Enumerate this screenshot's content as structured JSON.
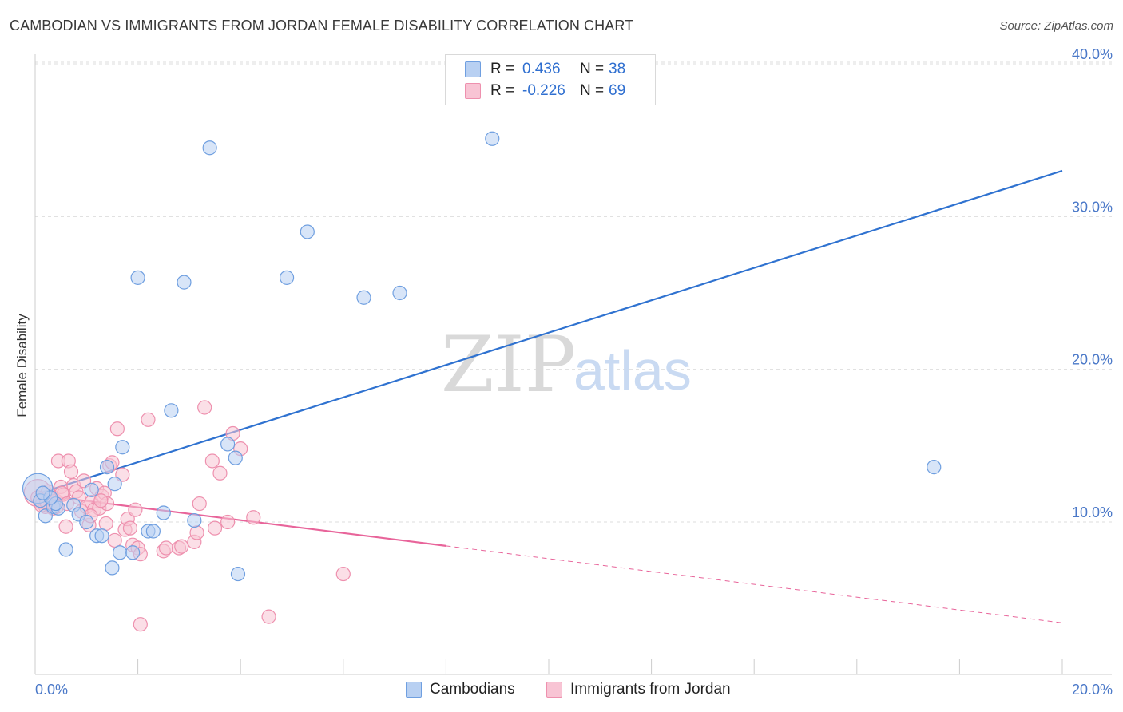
{
  "title": "CAMBODIAN VS IMMIGRANTS FROM JORDAN FEMALE DISABILITY CORRELATION CHART",
  "source": "Source: ZipAtlas.com",
  "watermark": {
    "zip": "ZIP",
    "atlas": "atlas"
  },
  "colors": {
    "blue_fill": "#b8d0f2",
    "blue_stroke": "#6f9fe0",
    "blue_line": "#2f72d0",
    "pink_fill": "#f8c4d4",
    "pink_stroke": "#ee90ae",
    "pink_line": "#e8649a",
    "grid": "#dddddd",
    "tick_text": "#4a78c8"
  },
  "legend": {
    "rows": [
      {
        "r_label": "R =",
        "r_value": "0.436",
        "n_label": "N =",
        "n_value": "38"
      },
      {
        "r_label": "R =",
        "r_value": "-0.226",
        "n_label": "N =",
        "n_value": "69"
      }
    ]
  },
  "bottom_legend": {
    "series1": "Cambodians",
    "series2": "Immigrants from Jordan"
  },
  "chart_data": {
    "type": "scatter",
    "title": "CAMBODIAN VS IMMIGRANTS FROM JORDAN FEMALE DISABILITY CORRELATION CHART",
    "xlabel": "",
    "ylabel": "Female Disability",
    "xlim": [
      0,
      20
    ],
    "ylim": [
      0,
      40
    ],
    "x_tick_labels": [
      "0.0%",
      "20.0%"
    ],
    "y_tick_labels": [
      "10.0%",
      "20.0%",
      "30.0%",
      "40.0%"
    ],
    "y_ticks": [
      10,
      20,
      30,
      40
    ],
    "grid": true,
    "series": [
      {
        "name": "Cambodians",
        "R": 0.436,
        "N": 38,
        "trend": {
          "x": [
            0,
            20
          ],
          "y": [
            11.8,
            33.0
          ],
          "dashed_from": null
        },
        "points": [
          {
            "x": 0.05,
            "y": 12.2,
            "s": 2.2
          },
          {
            "x": 0.1,
            "y": 11.4
          },
          {
            "x": 0.2,
            "y": 10.4
          },
          {
            "x": 0.35,
            "y": 11.0
          },
          {
            "x": 0.45,
            "y": 10.9
          },
          {
            "x": 0.6,
            "y": 8.2
          },
          {
            "x": 0.75,
            "y": 11.1
          },
          {
            "x": 0.85,
            "y": 10.5
          },
          {
            "x": 1.0,
            "y": 10.0
          },
          {
            "x": 1.1,
            "y": 12.1
          },
          {
            "x": 1.2,
            "y": 9.1
          },
          {
            "x": 1.3,
            "y": 9.1
          },
          {
            "x": 1.4,
            "y": 13.6
          },
          {
            "x": 1.5,
            "y": 7.0
          },
          {
            "x": 1.55,
            "y": 12.5
          },
          {
            "x": 1.65,
            "y": 8.0
          },
          {
            "x": 1.7,
            "y": 14.9
          },
          {
            "x": 1.9,
            "y": 8.0
          },
          {
            "x": 2.0,
            "y": 26.0
          },
          {
            "x": 2.2,
            "y": 9.4
          },
          {
            "x": 2.3,
            "y": 9.4
          },
          {
            "x": 2.5,
            "y": 10.6
          },
          {
            "x": 2.65,
            "y": 17.3
          },
          {
            "x": 2.9,
            "y": 25.7
          },
          {
            "x": 3.1,
            "y": 10.1
          },
          {
            "x": 3.4,
            "y": 34.5
          },
          {
            "x": 3.9,
            "y": 14.2
          },
          {
            "x": 3.75,
            "y": 15.1
          },
          {
            "x": 3.95,
            "y": 6.6
          },
          {
            "x": 4.9,
            "y": 26.0
          },
          {
            "x": 5.3,
            "y": 29.0
          },
          {
            "x": 6.4,
            "y": 24.7
          },
          {
            "x": 7.1,
            "y": 25.0
          },
          {
            "x": 8.9,
            "y": 35.1
          },
          {
            "x": 17.5,
            "y": 13.6
          },
          {
            "x": 0.4,
            "y": 11.2
          },
          {
            "x": 0.3,
            "y": 11.6
          },
          {
            "x": 0.15,
            "y": 11.9
          }
        ]
      },
      {
        "name": "Immigrants from Jordan",
        "R": -0.226,
        "N": 69,
        "trend": {
          "x": [
            0,
            20
          ],
          "y": [
            11.8,
            3.4
          ],
          "dashed_from": 8.0
        },
        "points": [
          {
            "x": 0.05,
            "y": 11.9,
            "s": 2.0
          },
          {
            "x": 0.1,
            "y": 11.3
          },
          {
            "x": 0.15,
            "y": 11.5
          },
          {
            "x": 0.2,
            "y": 11.0
          },
          {
            "x": 0.25,
            "y": 12.0
          },
          {
            "x": 0.3,
            "y": 11.2
          },
          {
            "x": 0.35,
            "y": 10.9
          },
          {
            "x": 0.4,
            "y": 11.4
          },
          {
            "x": 0.45,
            "y": 14.0
          },
          {
            "x": 0.5,
            "y": 12.3
          },
          {
            "x": 0.55,
            "y": 11.8
          },
          {
            "x": 0.6,
            "y": 9.7
          },
          {
            "x": 0.65,
            "y": 14.0
          },
          {
            "x": 0.7,
            "y": 13.3
          },
          {
            "x": 0.75,
            "y": 12.4
          },
          {
            "x": 0.8,
            "y": 12.0
          },
          {
            "x": 0.85,
            "y": 11.6
          },
          {
            "x": 0.9,
            "y": 10.7
          },
          {
            "x": 0.95,
            "y": 12.7
          },
          {
            "x": 1.0,
            "y": 11.0
          },
          {
            "x": 1.05,
            "y": 9.8
          },
          {
            "x": 1.1,
            "y": 11.3
          },
          {
            "x": 1.15,
            "y": 10.8
          },
          {
            "x": 1.2,
            "y": 12.2
          },
          {
            "x": 1.25,
            "y": 10.9
          },
          {
            "x": 1.3,
            "y": 11.7
          },
          {
            "x": 1.35,
            "y": 11.9
          },
          {
            "x": 1.4,
            "y": 11.2
          },
          {
            "x": 1.45,
            "y": 13.7
          },
          {
            "x": 1.5,
            "y": 13.9
          },
          {
            "x": 1.55,
            "y": 8.8
          },
          {
            "x": 1.6,
            "y": 16.1
          },
          {
            "x": 1.7,
            "y": 13.1
          },
          {
            "x": 1.75,
            "y": 9.5
          },
          {
            "x": 1.8,
            "y": 10.2
          },
          {
            "x": 1.85,
            "y": 9.6
          },
          {
            "x": 1.9,
            "y": 8.5
          },
          {
            "x": 1.95,
            "y": 10.8
          },
          {
            "x": 2.0,
            "y": 8.3
          },
          {
            "x": 2.05,
            "y": 7.9
          },
          {
            "x": 2.05,
            "y": 3.3
          },
          {
            "x": 2.2,
            "y": 16.7
          },
          {
            "x": 2.5,
            "y": 8.1
          },
          {
            "x": 2.55,
            "y": 8.3
          },
          {
            "x": 2.8,
            "y": 8.3
          },
          {
            "x": 2.85,
            "y": 8.4
          },
          {
            "x": 3.1,
            "y": 8.7
          },
          {
            "x": 3.15,
            "y": 9.3
          },
          {
            "x": 3.2,
            "y": 11.2
          },
          {
            "x": 3.3,
            "y": 17.5
          },
          {
            "x": 3.45,
            "y": 14.0
          },
          {
            "x": 3.5,
            "y": 9.6
          },
          {
            "x": 3.6,
            "y": 13.2
          },
          {
            "x": 3.75,
            "y": 10.0
          },
          {
            "x": 3.85,
            "y": 15.8
          },
          {
            "x": 4.0,
            "y": 14.8
          },
          {
            "x": 4.25,
            "y": 10.3
          },
          {
            "x": 4.55,
            "y": 3.8
          },
          {
            "x": 6.0,
            "y": 6.6
          },
          {
            "x": 0.05,
            "y": 11.6
          },
          {
            "x": 0.12,
            "y": 11.1
          },
          {
            "x": 0.22,
            "y": 11.3
          },
          {
            "x": 0.32,
            "y": 11.5
          },
          {
            "x": 0.42,
            "y": 11.0
          },
          {
            "x": 0.52,
            "y": 11.9
          },
          {
            "x": 1.08,
            "y": 10.4
          },
          {
            "x": 1.28,
            "y": 11.4
          },
          {
            "x": 1.38,
            "y": 9.9
          },
          {
            "x": 0.62,
            "y": 11.2
          }
        ]
      }
    ]
  }
}
